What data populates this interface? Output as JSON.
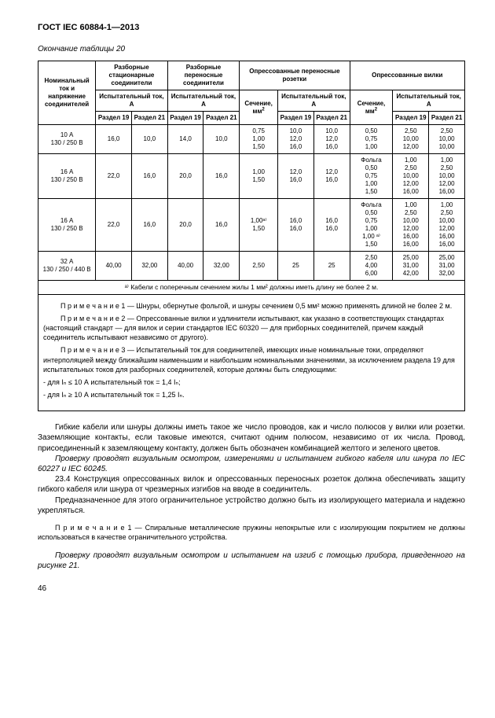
{
  "header": "ГОСТ IEC 60884-1—2013",
  "caption": "Окончание таблицы 20",
  "groups": {
    "nominal": "Номинальный ток и напряжение соединителей",
    "g1": "Разборные стационарные соединители",
    "g2": "Разборные переносные соединители",
    "g3": "Опрессованные переносные розетки",
    "g4": "Опрессованные вилки",
    "test": "Испытательный ток, А",
    "sec": "Сечение, мм",
    "r19": "Раздел 19",
    "r21": "Раздел 21"
  },
  "rows": [
    {
      "k": "10 А\n130 / 250 В",
      "a19": "16,0",
      "a21": "10,0",
      "b19": "14,0",
      "b21": "10,0",
      "sec1": "0,75\n1,00\n1,50",
      "c19": "10,0\n12,0\n16,0",
      "c21": "10,0\n12,0\n16,0",
      "sec2": "0,50\n0,75\n1,00",
      "d19": "2,50\n10,00\n12,00",
      "d21": "2,50\n10,00\n10,00"
    },
    {
      "k": "16 А\n130 / 250 В",
      "a19": "22,0",
      "a21": "16,0",
      "b19": "20,0",
      "b21": "16,0",
      "sec1": "1,00\n1,50",
      "c19": "12,0\n16,0",
      "c21": "12,0\n16,0",
      "sec2": "Фольга\n0,50\n0,75\n1,00\n1,50",
      "d19": "1,00\n2,50\n10,00\n12,00\n16,00",
      "d21": "1,00\n2,50\n10,00\n12,00\n16,00"
    },
    {
      "k": "16 А\n130 / 250 В",
      "a19": "22,0",
      "a21": "16,0",
      "b19": "20,0",
      "b21": "16,0",
      "sec1": "1,00ᵃ⁾\n1,50",
      "c19": "16,0\n16,0",
      "c21": "16,0\n16,0",
      "sec2": "Фольга\n0,50\n0,75\n1,00\n1,00 ᵃ⁾\n1,50",
      "d19": "1,00\n2,50\n10,00\n12,00\n16,00\n16,00",
      "d21": "1,00\n2,50\n10,00\n12,00\n16,00\n16,00"
    },
    {
      "k": "32 А\n130 / 250 / 440 В",
      "a19": "40,00",
      "a21": "32,00",
      "b19": "40,00",
      "b21": "32,00",
      "sec1": "2,50",
      "c19": "25",
      "c21": "25",
      "sec2": "2,50\n4,00\n6,00",
      "d19": "25,00\n31,00\n42,00",
      "d21": "25,00\n31,00\n32,00"
    }
  ],
  "footnote": "ᵃ⁾ Кабели с поперечным сечением жилы 1 мм²  должны иметь длину не более 2 м.",
  "notes": {
    "n1": "П р и м е ч а н и е  1 — Шнуры, обернутые фольгой, и шнуры сечением 0,5 мм² можно применять длиной не более 2 м.",
    "n2": "П р и м е ч а н и е  2 — Опрессованные вилки и удлинители испытывают, как указано в соответствующих стандартах (настоящий стандарт — для вилок и серии стандартов IEC 60320 — для приборных соединителей, причем каждый соединитель испытывают независимо от другого).",
    "n3a": "П р и м е ч а н и е  3 — Испытательный ток для соединителей, имеющих иные номинальные токи, определяют интерполяцией между ближайшим наименьшим и наибольшим номинальными значениями, за исключением раздела 19 для испытательных токов для разборных соединителей, которые должны быть следующими:",
    "n3b": "- для Iₙ  ≤ 10 А  испытательный ток = 1,4 Iₙ;",
    "n3c": "- для Iₙ  ≥ 10 А  испытательный ток = 1,25 Iₙ."
  },
  "body": {
    "p1": "Гибкие кабели или шнуры должны иметь такое же число проводов, как и число полюсов у вилки или розетки. Заземляющие контакты, если таковые имеются, считают одним полюсом, независимо от их числа. Провод, присоединенный к заземляющему контакту, должен быть обозначен комбинацией желтого и зеленого цветов.",
    "p2": "Проверку проводят визуальным осмотром, измерениями и испытанием гибкого кабеля или шнура по IEC 60227 и IEC 60245.",
    "p3": "23.4 Конструкция опрессованных вилок и опрессованных переносных розеток должна обеспечивать защиту гибкого кабеля или шнура от чрезмерных изгибов на вводе в соединитель.",
    "p4": "Предназначенное для этого ограничительное устройство должно быть из изолирующего материала и надежно укрепляться.",
    "p5": "П р и м е ч а н и е 1 — Спиральные  металлические  пружины  непокрытые или с изолирующим покрытием не должны использоваться в качестве ограничительного устройства.",
    "p6": "Проверку проводят визуальным осмотром и испытанием на изгиб с помощью прибора, приведенного на рисунке 21."
  },
  "pagenum": "46"
}
